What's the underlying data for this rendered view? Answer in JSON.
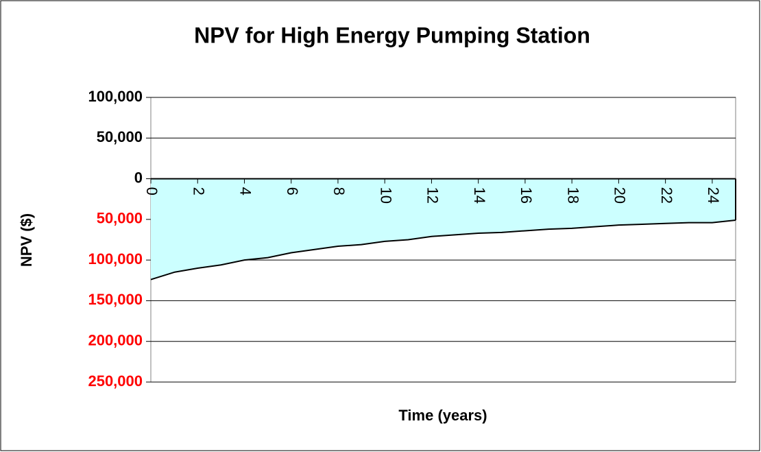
{
  "chart_data": {
    "type": "area",
    "title": "NPV for High Energy Pumping Station",
    "xlabel": "Time (years)",
    "ylabel": "NPV ($)",
    "x": [
      0,
      1,
      2,
      3,
      4,
      5,
      6,
      7,
      8,
      9,
      10,
      11,
      12,
      13,
      14,
      15,
      16,
      17,
      18,
      19,
      20,
      21,
      22,
      23,
      24,
      25
    ],
    "series": [
      {
        "name": "NPV",
        "color": "#ccffff",
        "line_color": "#000000",
        "values": [
          -124000,
          -115000,
          -110000,
          -106000,
          -100000,
          -97000,
          -91000,
          -87000,
          -83000,
          -81000,
          -77000,
          -75000,
          -71000,
          -69000,
          -67000,
          -66000,
          -64000,
          -62000,
          -61000,
          -59000,
          -57000,
          -56000,
          -55000,
          -54000,
          -54000,
          -51000
        ]
      }
    ],
    "xlim": [
      0,
      25
    ],
    "xticks": [
      0,
      2,
      4,
      6,
      8,
      10,
      12,
      14,
      16,
      18,
      20,
      22,
      24
    ],
    "ylim": [
      -250000,
      100000
    ],
    "yticks": [
      {
        "value": -250000,
        "label": "250,000"
      },
      {
        "value": -200000,
        "label": "200,000"
      },
      {
        "value": -150000,
        "label": "150,000"
      },
      {
        "value": -100000,
        "label": "100,000"
      },
      {
        "value": -50000,
        "label": "50,000"
      },
      0,
      {
        "value": 50000,
        "label": "50,000"
      },
      {
        "value": 100000,
        "label": "100,000"
      }
    ],
    "grid": true,
    "negative_tick_color": "#ff0000"
  }
}
